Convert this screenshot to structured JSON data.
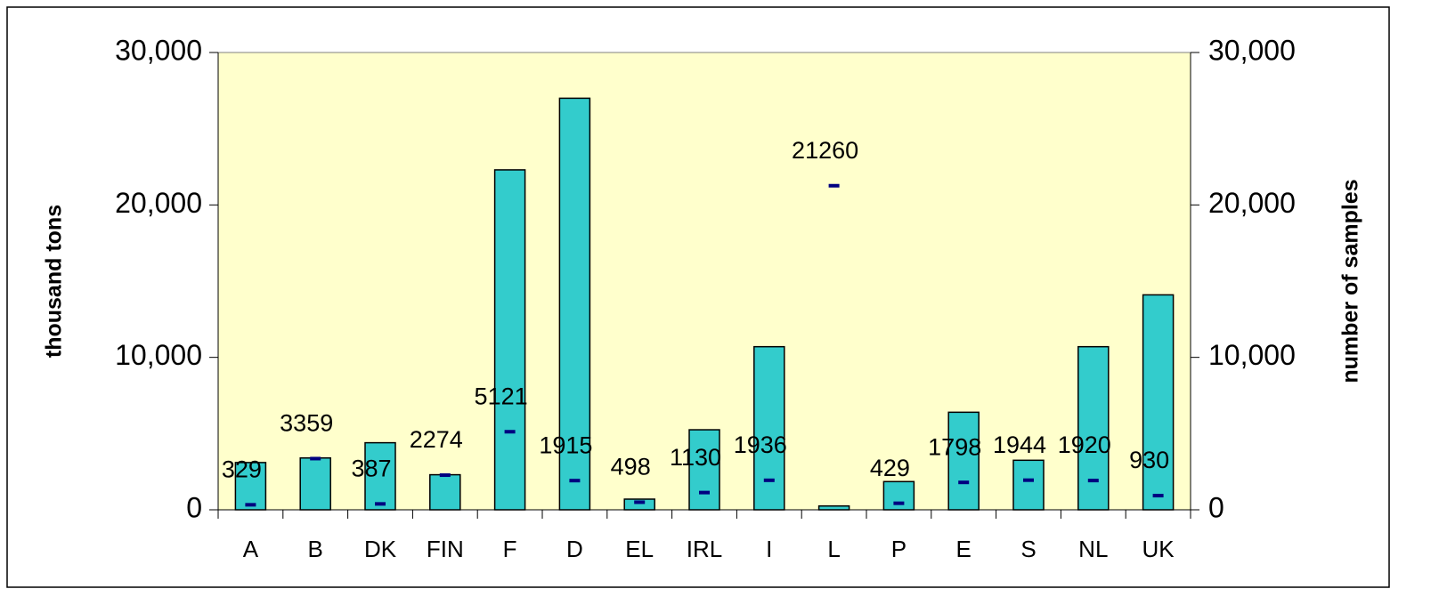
{
  "chart_data": {
    "type": "bar",
    "categories": [
      "A",
      "B",
      "DK",
      "FIN",
      "F",
      "D",
      "EL",
      "IRL",
      "I",
      "L",
      "P",
      "E",
      "S",
      "NL",
      "UK"
    ],
    "y_label": "thousand tons",
    "y2_label": "number of samples",
    "series": [
      {
        "type": "bar",
        "color": "#33cccc",
        "values": [
          3100,
          3400,
          4400,
          2300,
          22300,
          27000,
          700,
          5250,
          10700,
          250,
          1850,
          6400,
          3250,
          10700,
          14100
        ]
      },
      {
        "type": "marker",
        "color": "#000080",
        "axis": "y2",
        "values": [
          329,
          3359,
          387,
          2274,
          5121,
          1915,
          498,
          1130,
          1936,
          21260,
          429,
          1798,
          1944,
          1920,
          930
        ]
      }
    ],
    "ylim": [
      0,
      30000
    ],
    "yticks": [
      0,
      {
        "value": 10000,
        "label": "10,000"
      },
      {
        "value": 20000,
        "label": "20,000"
      },
      {
        "value": 30000,
        "label": "30,000"
      }
    ],
    "y2lim": [
      0,
      30000
    ],
    "y2ticks": [
      0,
      {
        "value": 10000,
        "label": "10,000"
      },
      {
        "value": 20000,
        "label": "20,000"
      },
      {
        "value": 30000,
        "label": "30,000"
      }
    ],
    "plot_background": "#ffffcc",
    "grid": false
  }
}
